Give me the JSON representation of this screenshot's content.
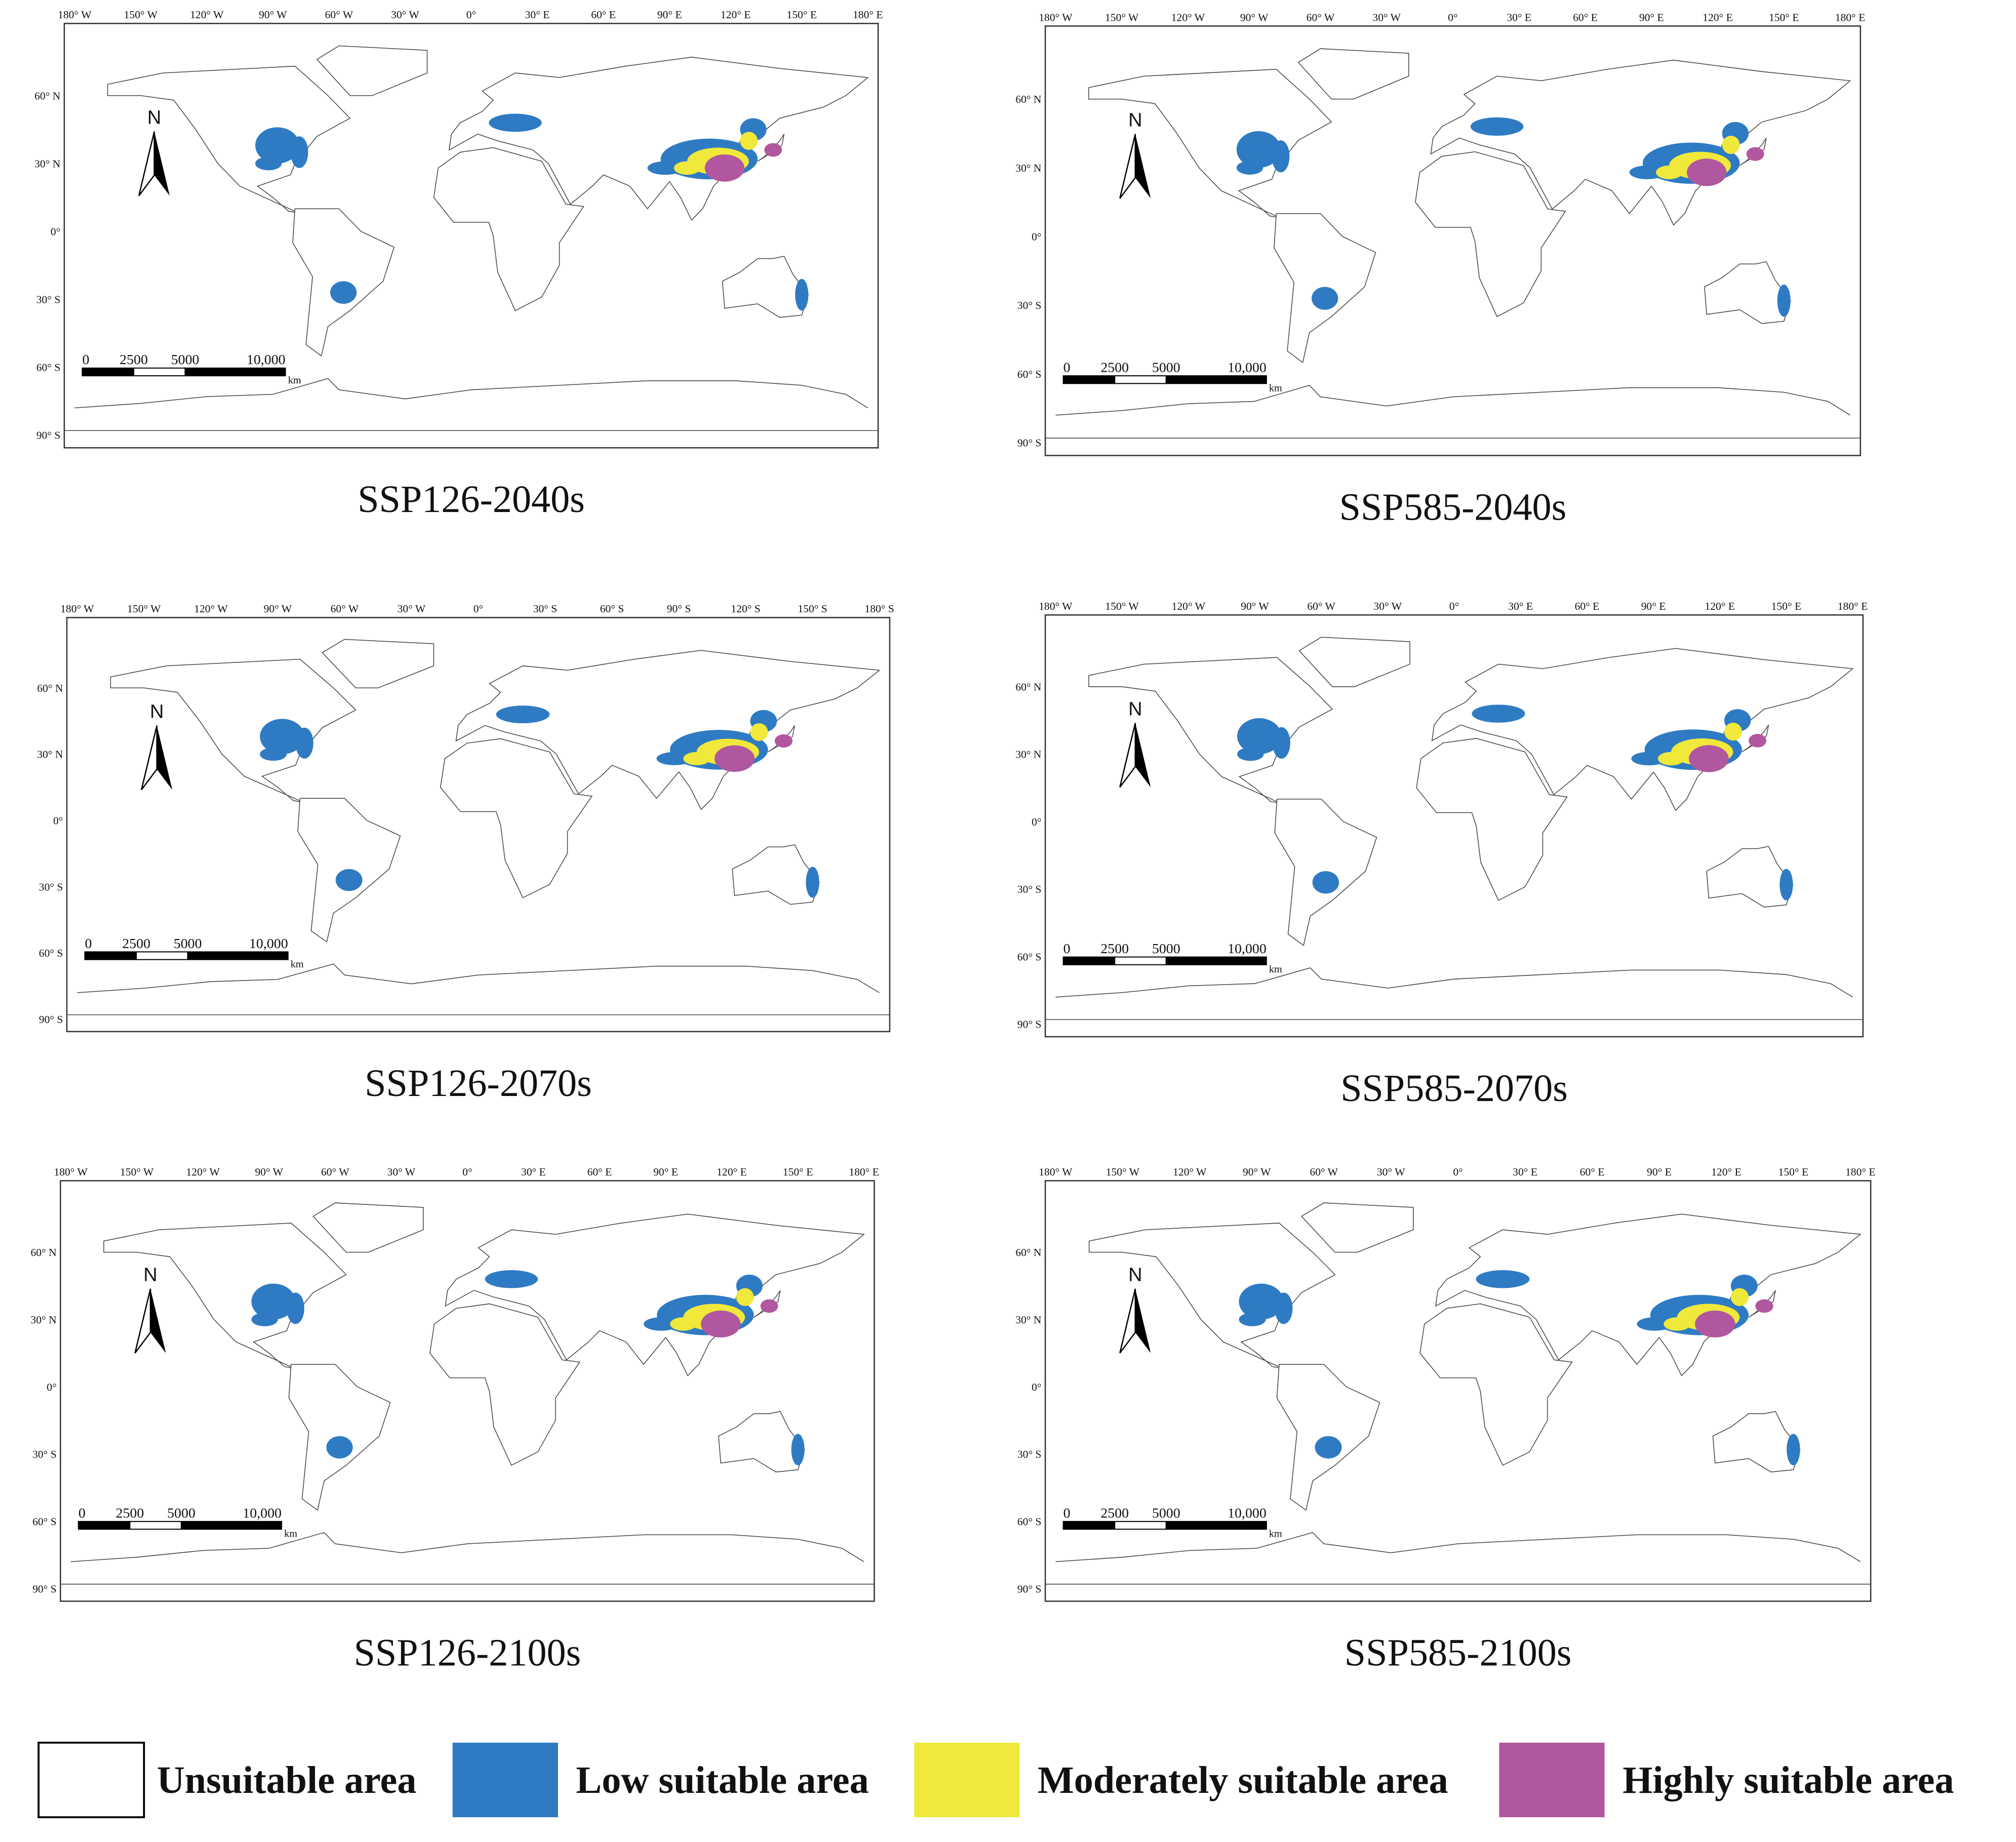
{
  "panels": [
    {
      "title": "SSP126-2040s",
      "lon_labels": [
        "180° W",
        "150° W",
        "120° W",
        "90° W",
        "60° W",
        "30° W",
        "0°",
        "30° E",
        "60° E",
        "90° E",
        "120° E",
        "150° E",
        "180° E"
      ],
      "lat_labels": [
        "60° N",
        "30° N",
        "0°",
        "30° S",
        "60° S",
        "90° S"
      ],
      "scale_labels": [
        "0",
        "2500",
        "5000",
        "10,000",
        "km"
      ],
      "north": "N"
    },
    {
      "title": "SSP585-2040s",
      "lon_labels": [
        "180° W",
        "150° W",
        "120° W",
        "90° W",
        "60° W",
        "30° W",
        "0°",
        "30° E",
        "60° E",
        "90° E",
        "120° E",
        "150° E",
        "180° E"
      ],
      "lat_labels": [
        "60° N",
        "30° N",
        "0°",
        "30° S",
        "60° S",
        "90° S"
      ],
      "scale_labels": [
        "0",
        "2500",
        "5000",
        "10,000",
        "km"
      ],
      "north": "N"
    },
    {
      "title": "SSP126-2070s",
      "lon_labels": [
        "180° W",
        "150° W",
        "120° W",
        "90° W",
        "60° W",
        "30° W",
        "0°",
        "30° S",
        "60° S",
        "90° S",
        "120° S",
        "150° S",
        "180° S"
      ],
      "lat_labels": [
        "60° N",
        "30° N",
        "0°",
        "30° S",
        "60° S",
        "90° S"
      ],
      "scale_labels": [
        "0",
        "2500",
        "5000",
        "10,000",
        "km"
      ],
      "north": "N"
    },
    {
      "title": "SSP585-2070s",
      "lon_labels": [
        "180° W",
        "150° W",
        "120° W",
        "90° W",
        "60° W",
        "30° W",
        "0°",
        "30° E",
        "60° E",
        "90° E",
        "120° E",
        "150° E",
        "180° E"
      ],
      "lat_labels": [
        "60° N",
        "30° N",
        "0°",
        "30° S",
        "60° S",
        "90° S"
      ],
      "scale_labels": [
        "0",
        "2500",
        "5000",
        "10,000",
        "km"
      ],
      "north": "N"
    },
    {
      "title": "SSP126-2100s",
      "lon_labels": [
        "180° W",
        "150° W",
        "120° W",
        "90° W",
        "60° W",
        "30° W",
        "0°",
        "30° E",
        "60° E",
        "90° E",
        "120° E",
        "150° E",
        "180° E"
      ],
      "lat_labels": [
        "60° N",
        "30° N",
        "0°",
        "30° S",
        "60° S",
        "90° S"
      ],
      "scale_labels": [
        "0",
        "2500",
        "5000",
        "10,000",
        "km"
      ],
      "north": "N"
    },
    {
      "title": "SSP585-2100s",
      "lon_labels": [
        "180° W",
        "150° W",
        "120° W",
        "90° W",
        "60° W",
        "30° W",
        "0°",
        "30° E",
        "60° E",
        "90° E",
        "120° E",
        "150° E",
        "180° E"
      ],
      "lat_labels": [
        "60° N",
        "30° N",
        "0°",
        "30° S",
        "60° S",
        "90° S"
      ],
      "scale_labels": [
        "0",
        "2500",
        "5000",
        "10,000",
        "km"
      ],
      "north": "N"
    }
  ],
  "legend": [
    {
      "label": "Unsuitable area",
      "color": "#ffffff"
    },
    {
      "label": "Low suitable area",
      "color": "#2e7bc4"
    },
    {
      "label": "Moderately suitable area",
      "color": "#f0e83a"
    },
    {
      "label": "Highly suitable area",
      "color": "#b0579f"
    }
  ]
}
